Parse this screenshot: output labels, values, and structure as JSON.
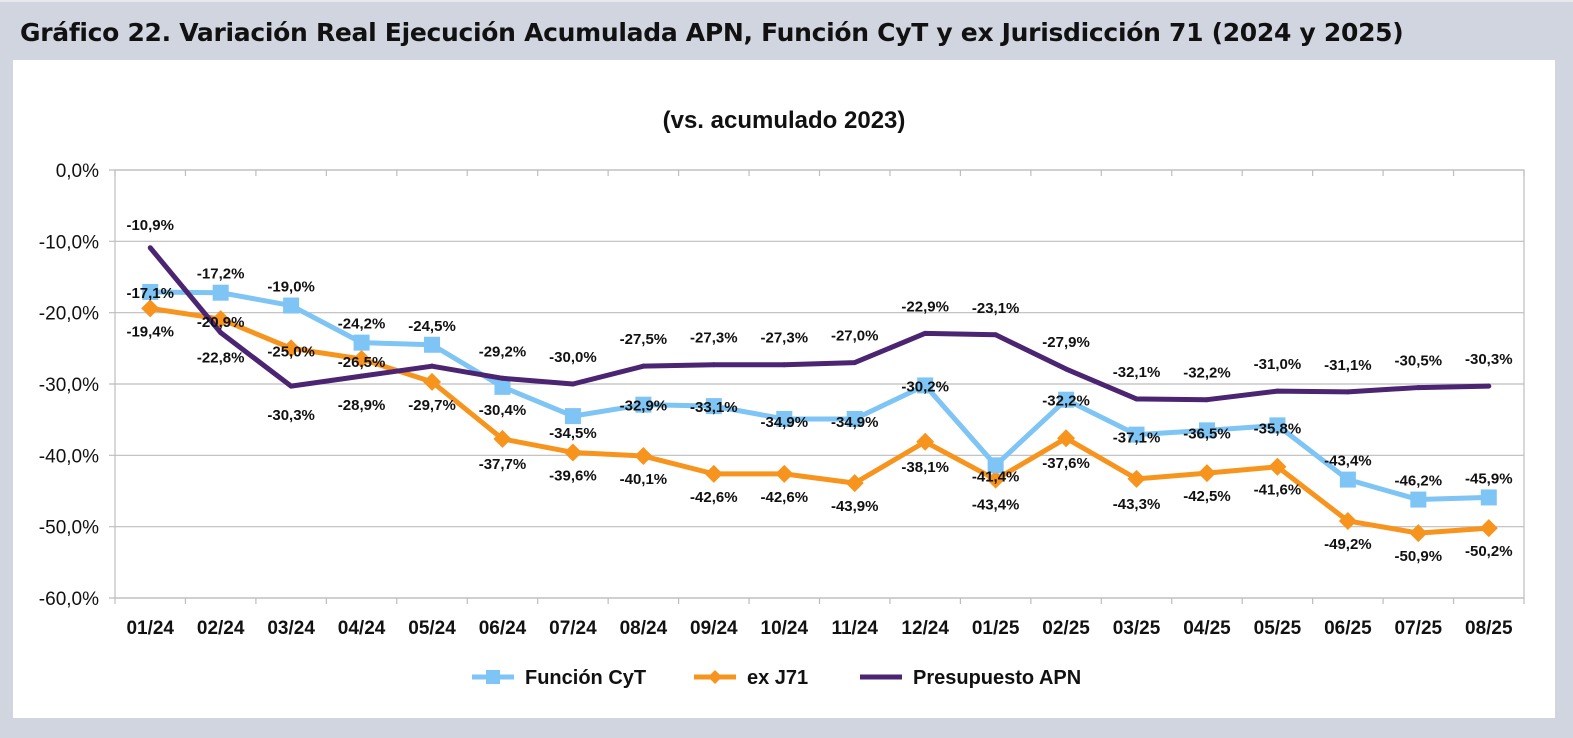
{
  "figure": {
    "title": "Gráfico 22. Variación Real Ejecución Acumulada APN, Función CyT y ex Jurisdicción 71 (2024 y 2025)"
  },
  "chart_data": {
    "type": "line",
    "title": "",
    "subtitle": "(vs. acumulado 2023)",
    "xlabel": "",
    "ylabel": "",
    "ylim": [
      -60,
      0
    ],
    "yticks": [
      0,
      -10,
      -20,
      -30,
      -40,
      -50,
      -60
    ],
    "ytick_labels": [
      "0,0%",
      "-10,0%",
      "-20,0%",
      "-30,0%",
      "-40,0%",
      "-50,0%",
      "-60,0%"
    ],
    "grid": true,
    "legend_position": "bottom",
    "categories": [
      "01/24",
      "02/24",
      "03/24",
      "04/24",
      "05/24",
      "06/24",
      "07/24",
      "08/24",
      "09/24",
      "10/24",
      "11/24",
      "12/24",
      "01/25",
      "02/25",
      "03/25",
      "04/25",
      "05/25",
      "06/25",
      "07/25",
      "08/25"
    ],
    "series": [
      {
        "name": "Función CyT",
        "color": "#7ec4f4",
        "marker": "square",
        "values": [
          -17.1,
          -17.2,
          -19.0,
          -24.2,
          -24.5,
          -30.4,
          -34.5,
          -32.9,
          -33.1,
          -34.9,
          -34.9,
          -30.2,
          -41.4,
          -32.2,
          -37.1,
          -36.5,
          -35.8,
          -43.4,
          -46.2,
          -45.9
        ],
        "labels": [
          "-17,1%",
          "-17,2%",
          "-19,0%",
          "-24,2%",
          "-24,5%",
          "-30,4%",
          "-34,5%",
          "-32,9%",
          "-33,1%",
          "-34,9%",
          "-34,9%",
          "-30,2%",
          "-41,4%",
          "-32,2%",
          "-37,1%",
          "-36,5%",
          "-35,8%",
          "-43,4%",
          "-46,2%",
          "-45,9%"
        ]
      },
      {
        "name": "ex J71",
        "color": "#f7941d",
        "marker": "diamond",
        "values": [
          -19.4,
          -20.9,
          -25.0,
          -26.5,
          -29.7,
          -37.7,
          -39.6,
          -40.1,
          -42.6,
          -42.6,
          -43.9,
          -38.1,
          -43.4,
          -37.6,
          -43.3,
          -42.5,
          -41.6,
          -49.2,
          -50.9,
          -50.2
        ],
        "labels": [
          "-19,4%",
          "-20,9%",
          "-25,0%",
          "-26,5%",
          "-29,7%",
          "-37,7%",
          "-39,6%",
          "-40,1%",
          "-42,6%",
          "-42,6%",
          "-43,9%",
          "-38,1%",
          "-43,4%",
          "-37,6%",
          "-43,3%",
          "-42,5%",
          "-41,6%",
          "-49,2%",
          "-50,9%",
          "-50,2%"
        ]
      },
      {
        "name": "Presupuesto APN",
        "color": "#4b2472",
        "marker": "none",
        "values": [
          -10.9,
          -22.8,
          -30.3,
          -28.9,
          -27.5,
          -29.2,
          -30.0,
          -27.5,
          -27.3,
          -27.3,
          -27.0,
          -22.9,
          -23.1,
          -27.9,
          -32.1,
          -32.2,
          -31.0,
          -31.1,
          -30.5,
          -30.3
        ],
        "labels": [
          "-10,9%",
          "-22,8%",
          "-30,3%",
          "-28,9%",
          "",
          "-29,2%",
          "-30,0%",
          "-27,5%",
          "-27,3%",
          "-27,3%",
          "-27,0%",
          "-22,9%",
          "-23,1%",
          "-27,9%",
          "-32,1%",
          "-32,2%",
          "-31,0%",
          "-31,1%",
          "-30,5%",
          "-30,3%"
        ]
      }
    ]
  }
}
